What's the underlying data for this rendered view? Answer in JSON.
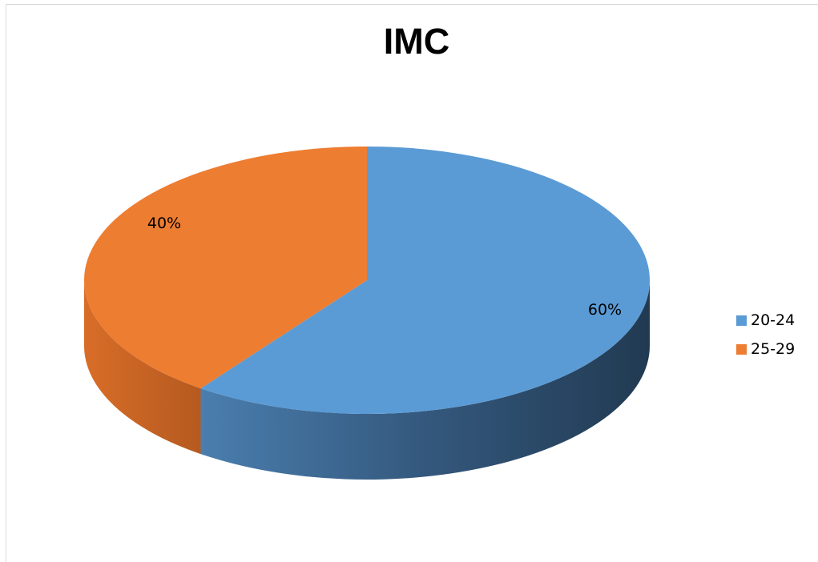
{
  "chart_data": {
    "type": "pie",
    "title": "IMC",
    "categories": [
      "20-24",
      "25-29"
    ],
    "values": [
      60,
      40
    ],
    "data_labels": [
      "60%",
      "40%"
    ],
    "colors": [
      "#5b9bd5",
      "#ed7d31"
    ],
    "legend_position": "right",
    "style": "3d"
  }
}
